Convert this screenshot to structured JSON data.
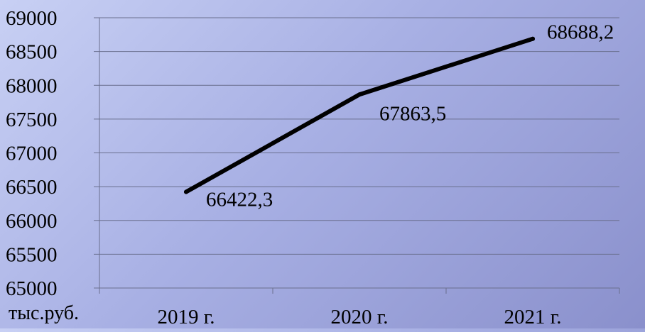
{
  "chart_data": {
    "type": "line",
    "categories": [
      "2019 г.",
      "2020 г.",
      "2021 г."
    ],
    "series": [
      {
        "values": [
          66422.3,
          67863.5,
          68688.2
        ]
      }
    ],
    "data_labels": [
      "66422,3",
      "67863,5",
      "68688,2"
    ],
    "unit_label": "тыс.руб.",
    "y_ticks": [
      "65000",
      "65500",
      "66000",
      "66500",
      "67000",
      "67500",
      "68000",
      "68500",
      "69000"
    ],
    "ylim": [
      65000,
      69000
    ],
    "grid": true,
    "line_color": "#000000"
  }
}
